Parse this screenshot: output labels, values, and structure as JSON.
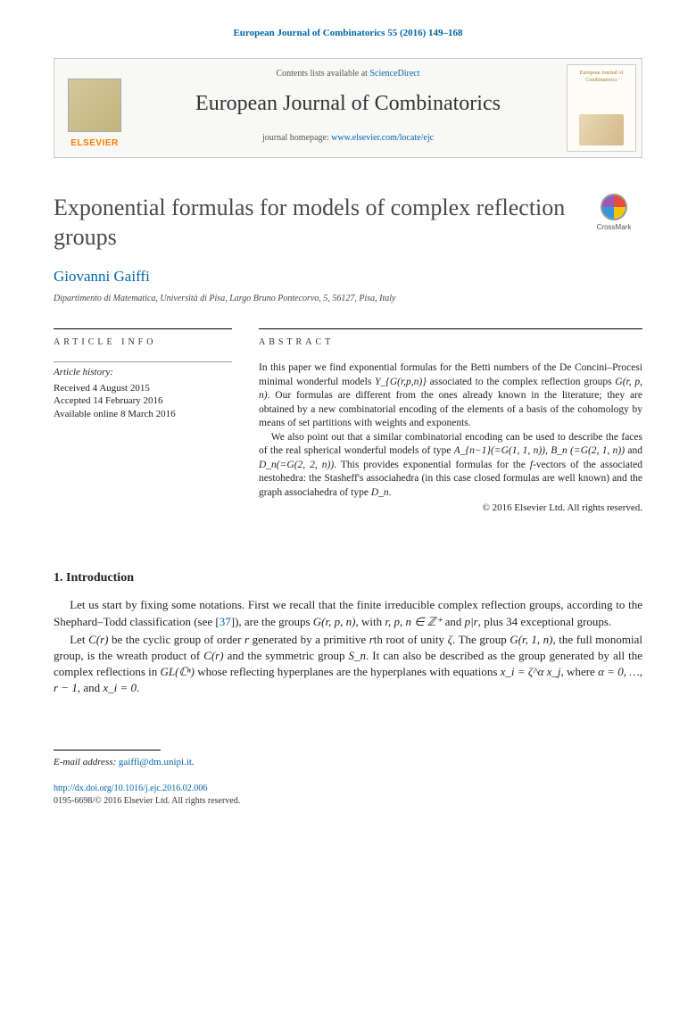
{
  "header": {
    "citation": "European Journal of Combinatorics 55 (2016) 149–168",
    "contents_prefix": "Contents lists available at ",
    "contents_link": "ScienceDirect",
    "journal_name": "European Journal of Combinatorics",
    "homepage_prefix": "journal homepage: ",
    "homepage_link": "www.elsevier.com/locate/ejc",
    "elsevier_label": "ELSEVIER",
    "cover_title": "European Journal of Combinatorics",
    "colors": {
      "link": "#0066aa",
      "elsevier_orange": "#ff7a00",
      "masthead_bg": "#f8f8f6",
      "border": "#cccccc"
    }
  },
  "crossmark": {
    "label": "CrossMark"
  },
  "article": {
    "title": "Exponential formulas for models of complex reflection groups",
    "author": "Giovanni Gaiffi",
    "affiliation": "Dipartimento di Matematica, Università di Pisa, Largo Bruno Pontecorvo, 5, 56127, Pisa, Italy"
  },
  "info": {
    "heading": "article info",
    "history_label": "Article history:",
    "received": "Received 4 August 2015",
    "accepted": "Accepted 14 February 2016",
    "online": "Available online 8 March 2016"
  },
  "abstract": {
    "heading": "abstract",
    "p1_a": "In this paper we find exponential formulas for the Betti numbers of the De Concini–Procesi minimal wonderful models ",
    "p1_math1": "Y_{G(r,p,n)}",
    "p1_b": " associated to the complex reflection groups ",
    "p1_math2": "G(r, p, n)",
    "p1_c": ". Our formulas are different from the ones already known in the literature; they are obtained by a new combinatorial encoding of the elements of a basis of the cohomology by means of set partitions with weights and exponents.",
    "p2_a": "We also point out that a similar combinatorial encoding can be used to describe the faces of the real spherical wonderful models of type ",
    "p2_math1": "A_{n−1}(=G(1, 1, n)), B_n (=G(2, 1, n))",
    "p2_b": " and ",
    "p2_math2": "D_n(=G(2, 2, n))",
    "p2_c": ". This provides exponential formulas for the ",
    "p2_math3": "f",
    "p2_d": "-vectors of the associated nestohedra: the Stasheff's associahedra (in this case closed formulas are well known) and the graph associahedra of type ",
    "p2_math4": "D_n",
    "p2_e": ".",
    "copyright": "© 2016 Elsevier Ltd. All rights reserved."
  },
  "section1": {
    "heading": "1.  Introduction",
    "p1_a": "Let us start by fixing some notations. First we recall that the finite irreducible complex reflection groups, according to the Shephard–Todd classification (see [",
    "p1_ref": "37",
    "p1_b": "]), are the groups ",
    "p1_math1": "G(r, p, n)",
    "p1_c": ", with ",
    "p1_math2": "r, p, n ∈ ℤ⁺",
    "p1_d": " and ",
    "p1_math3": "p|r",
    "p1_e": ", plus 34 exceptional groups.",
    "p2_a": "Let ",
    "p2_math1": "C(r)",
    "p2_b": " be the cyclic group of order ",
    "p2_math2": "r",
    "p2_c": " generated by a primitive ",
    "p2_math3": "r",
    "p2_d": "th root of unity ",
    "p2_math4": "ζ",
    "p2_e": ". The group ",
    "p2_math5": "G(r, 1, n)",
    "p2_f": ", the full monomial group, is the wreath product of ",
    "p2_math6": "C(r)",
    "p2_g": " and the symmetric group ",
    "p2_math7": "S_n",
    "p2_h": ". It can also be described as the group generated by all the complex reflections in ",
    "p2_math8": "GL(ℂⁿ)",
    "p2_i": " whose reflecting hyperplanes are the hyperplanes with equations ",
    "p2_math9": "x_i = ζ^α x_j",
    "p2_j": ", where ",
    "p2_math10": "α = 0, …, r − 1",
    "p2_k": ", and ",
    "p2_math11": "x_i = 0",
    "p2_l": "."
  },
  "footer": {
    "email_label": "E-mail address: ",
    "email": "gaiffi@dm.unipi.it",
    "doi": "http://dx.doi.org/10.1016/j.ejc.2016.02.006",
    "issn_copyright": "0195-6698/© 2016 Elsevier Ltd. All rights reserved."
  }
}
